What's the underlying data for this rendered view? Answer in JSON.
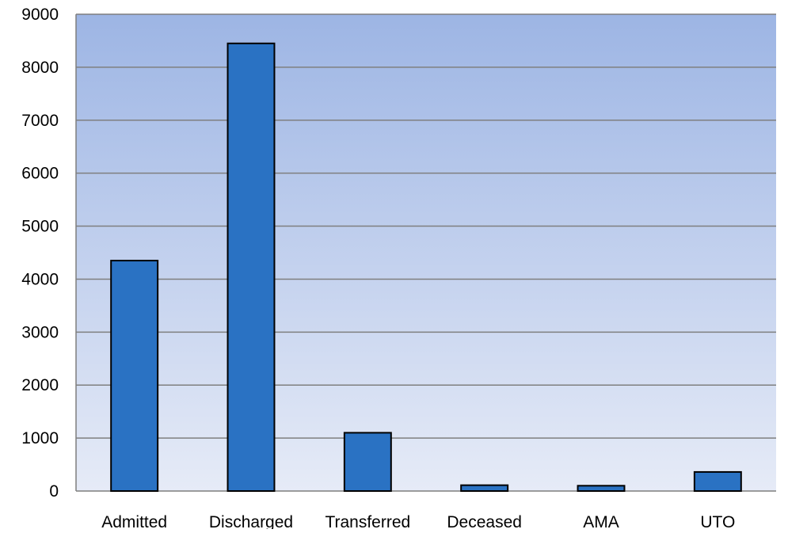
{
  "chart_data": {
    "type": "bar",
    "categories": [
      "Admitted",
      "Discharged",
      "Transferred",
      "Deceased",
      "AMA",
      "UTO"
    ],
    "values": [
      4350,
      8450,
      1100,
      110,
      100,
      360
    ],
    "ylim": [
      0,
      9000
    ],
    "yticks": [
      "0",
      "1000",
      "2000",
      "3000",
      "4000",
      "5000",
      "6000",
      "7000",
      "8000",
      "9000"
    ],
    "grid": true,
    "legend": "none",
    "colors": {
      "bar_fill": "#2A72C3",
      "bar_stroke": "#000000",
      "plot_bg_top": "#9DB5E4",
      "plot_bg_bottom": "#E6EBF7",
      "gridline": "#7F7F7F",
      "axis": "#7F7F7F"
    }
  }
}
